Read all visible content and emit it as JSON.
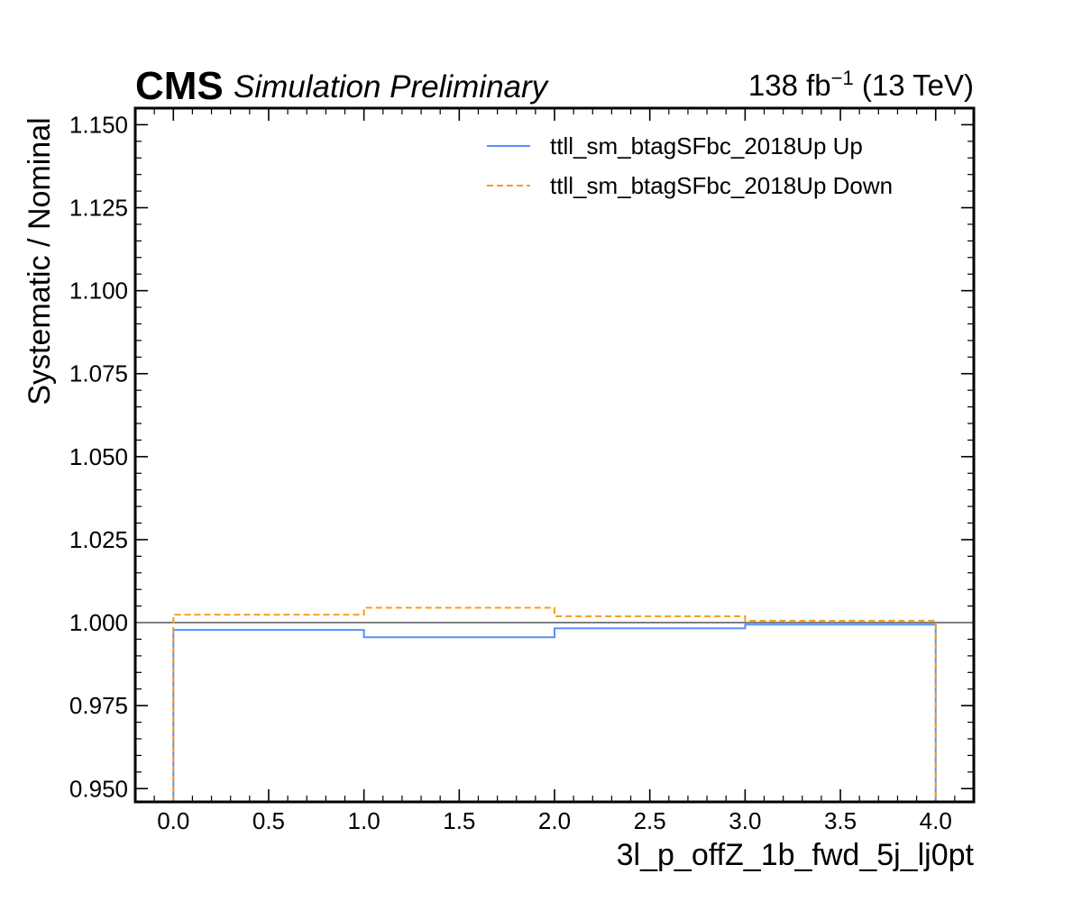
{
  "header": {
    "experiment": "CMS",
    "subtitle": "Simulation Preliminary",
    "lumi_prefix": "138 fb",
    "lumi_exp": "−1",
    "lumi_suffix": " (13 TeV)"
  },
  "colors": {
    "up": "#5790fc",
    "down": "#f89c20",
    "reference": "#808080",
    "frame": "#000000"
  },
  "chart_data": {
    "type": "line",
    "drawstyle": "step-histogram",
    "xlabel": "3l_p_offZ_1b_fwd_5j_lj0pt",
    "ylabel": "Systematic / Nominal",
    "xlim": [
      -0.2,
      4.2
    ],
    "ylim": [
      0.946,
      1.155
    ],
    "reference_line": 1.0,
    "x_ticks": [
      0.0,
      0.5,
      1.0,
      1.5,
      2.0,
      2.5,
      3.0,
      3.5,
      4.0
    ],
    "x_tick_labels": [
      "0.0",
      "0.5",
      "1.0",
      "1.5",
      "2.0",
      "2.5",
      "3.0",
      "3.5",
      "4.0"
    ],
    "y_ticks": [
      0.95,
      0.975,
      1.0,
      1.025,
      1.05,
      1.075,
      1.1,
      1.125,
      1.15
    ],
    "y_tick_labels": [
      "0.950",
      "0.975",
      "1.000",
      "1.025",
      "1.050",
      "1.075",
      "1.100",
      "1.125",
      "1.150"
    ],
    "bin_edges": [
      0,
      1,
      2,
      3,
      4
    ],
    "legend_position": "top-right",
    "grid": false,
    "series": [
      {
        "name": "ttll_sm_btagSFbc_2018Up Up",
        "style": "solid",
        "values": [
          0.9978,
          0.9956,
          0.9983,
          0.9994
        ]
      },
      {
        "name": "ttll_sm_btagSFbc_2018Up Down",
        "style": "dashed",
        "values": [
          1.0024,
          1.0045,
          1.0019,
          1.0006
        ]
      }
    ]
  }
}
